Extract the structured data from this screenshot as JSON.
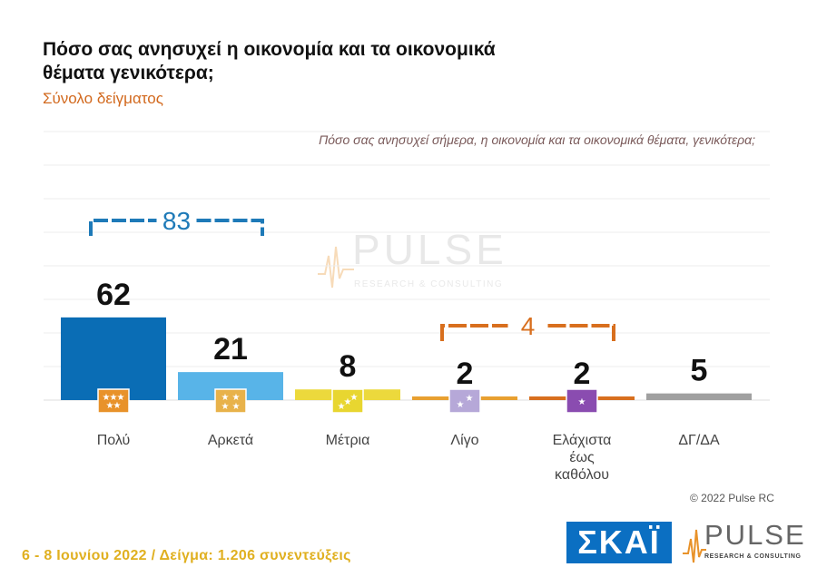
{
  "title": "Πόσο σας ανησυχεί η οικονομία και τα οικονομικά θέματα γενικότερα;",
  "subtitle": "Σύνολο δείγματος",
  "question": "Πόσο σας ανησυχεί σήμερα, η οικονομία και τα οικονομικά θέματα, γενικότερα;",
  "chart_data": {
    "type": "bar",
    "categories": [
      "Πολύ",
      "Αρκετά",
      "Μέτρια",
      "Λίγο",
      "Ελάχιστα έως καθόλου",
      "ΔΓ/ΔΑ"
    ],
    "category_lines": [
      [
        "Πολύ"
      ],
      [
        "Αρκετά"
      ],
      [
        "Μέτρια"
      ],
      [
        "Λίγο"
      ],
      [
        "Ελάχιστα",
        "έως",
        "καθόλου"
      ],
      [
        "ΔΓ/ΔΑ"
      ]
    ],
    "values": [
      62,
      21,
      8,
      2,
      2,
      5
    ],
    "value_labels": [
      "62",
      "21",
      "8",
      "2",
      "2",
      "5"
    ],
    "bar_colors": [
      "#0a6db5",
      "#58b4e8",
      "#ecd93c",
      "#e8a030",
      "#d86f1e",
      "#a0a0a0"
    ],
    "icon_colors": [
      "#e8922a",
      "#e8b24a",
      "#e8d630",
      "#b6a8d8",
      "#8a4cb0",
      null
    ],
    "star_counts": [
      5,
      4,
      3,
      2,
      1,
      0
    ],
    "groups": [
      {
        "label": "83",
        "from": 0,
        "to": 1,
        "color": "#1e7ab8"
      },
      {
        "label": "4",
        "from": 3,
        "to": 4,
        "color": "#d86f1e"
      }
    ],
    "ylim": [
      0,
      70
    ],
    "grid": true
  },
  "watermark": {
    "word": "PULSE",
    "sub": "RESEARCH & CONSULTING"
  },
  "copyright": "© 2022 Pulse RC",
  "footer": "6 - 8  Ιουνίου  2022  /  Δείγμα:  1.206 συνεντεύξεις",
  "logos": {
    "skai": "ΣΚΑΪ",
    "pulse_word": "PULSE",
    "pulse_sub": "RESEARCH & CONSULTING"
  }
}
